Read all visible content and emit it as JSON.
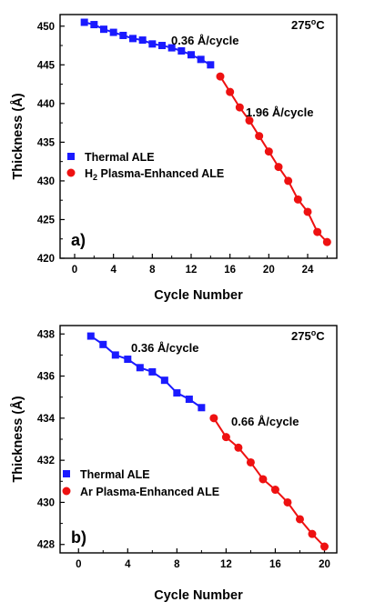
{
  "colors": {
    "thermal": "#1a1aff",
    "plasma": "#ee1111",
    "axis": "#000000"
  },
  "chart_data": [
    {
      "type": "line",
      "panel_label": "a)",
      "temperature": "275",
      "temperature_sup": "o",
      "temperature_unit": "C",
      "xlabel": "Cycle Number",
      "ylabel": "Thickness (Å)",
      "xlim": [
        -1.5,
        27
      ],
      "ylim": [
        420,
        451.5
      ],
      "xticks": [
        0,
        4,
        8,
        12,
        16,
        20,
        24
      ],
      "yticks": [
        420,
        425,
        430,
        435,
        440,
        445,
        450
      ],
      "series": [
        {
          "name": "Thermal ALE",
          "marker": "square",
          "x": [
            1,
            2,
            3,
            4,
            5,
            6,
            7,
            8,
            9,
            10,
            11,
            12,
            13,
            14
          ],
          "y": [
            450.5,
            450.2,
            449.6,
            449.2,
            448.8,
            448.4,
            448.2,
            447.7,
            447.5,
            447.2,
            446.8,
            446.3,
            445.7,
            445.0
          ]
        },
        {
          "name_prefix": "H",
          "name_sub": "2",
          "name_suffix": " Plasma-Enhanced ALE",
          "marker": "circle",
          "x": [
            15,
            16,
            17,
            18,
            19,
            20,
            21,
            22,
            23,
            24,
            25,
            26
          ],
          "y": [
            443.5,
            441.5,
            439.5,
            437.8,
            435.8,
            433.8,
            431.8,
            430.0,
            427.6,
            426.0,
            423.4,
            422.1
          ]
        }
      ],
      "annotations": [
        {
          "text": "0.36 Å/cycle"
        },
        {
          "text": "1.96 Å/cycle"
        }
      ]
    },
    {
      "type": "line",
      "panel_label": "b)",
      "temperature": "275",
      "temperature_sup": "o",
      "temperature_unit": "C",
      "xlabel": "Cycle Number",
      "ylabel": "Thickness (Å)",
      "xlim": [
        -1.5,
        21
      ],
      "ylim": [
        427.6,
        438.4
      ],
      "xticks": [
        0,
        4,
        8,
        12,
        16,
        20
      ],
      "yticks": [
        428,
        430,
        432,
        434,
        436,
        438
      ],
      "series": [
        {
          "name": "Thermal ALE",
          "marker": "square",
          "x": [
            1,
            2,
            3,
            4,
            5,
            6,
            7,
            8,
            9,
            10
          ],
          "y": [
            437.9,
            437.5,
            437.0,
            436.8,
            436.4,
            436.2,
            435.8,
            435.2,
            434.9,
            434.5
          ]
        },
        {
          "name": "Ar Plasma-Enhanced ALE",
          "marker": "circle",
          "x": [
            11,
            12,
            13,
            14,
            15,
            16,
            17,
            18,
            19,
            20
          ],
          "y": [
            434.0,
            433.1,
            432.6,
            431.9,
            431.1,
            430.6,
            430.0,
            429.2,
            428.5,
            427.9
          ]
        }
      ],
      "annotations": [
        {
          "text": "0.36 Å/cycle"
        },
        {
          "text": "0.66 Å/cycle"
        }
      ]
    }
  ]
}
